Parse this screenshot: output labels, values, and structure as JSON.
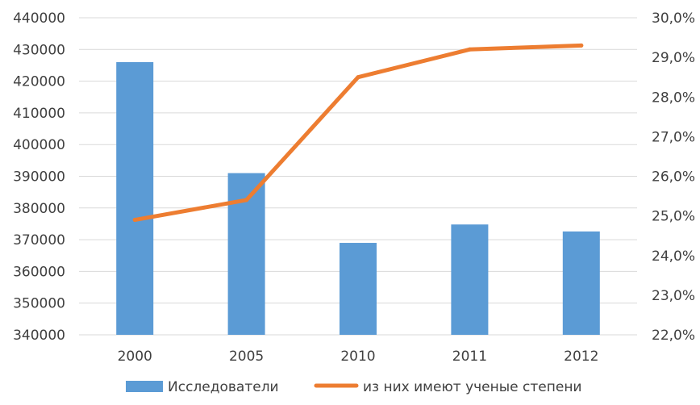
{
  "chart_data": {
    "type": "bar",
    "categories": [
      "2000",
      "2005",
      "2010",
      "2011",
      "2012"
    ],
    "series": [
      {
        "name": "Исследователи",
        "type": "bar",
        "axis": "left",
        "values": [
          426000,
          391000,
          369000,
          374800,
          372600
        ],
        "color": "#5B9BD5"
      },
      {
        "name": "из них имеют ученые степени",
        "type": "line",
        "axis": "right",
        "values": [
          24.9,
          25.4,
          28.5,
          29.2,
          29.3
        ],
        "color": "#ED7D31"
      }
    ],
    "y_left": {
      "ylim": [
        340000,
        440000
      ],
      "ticks": [
        "340000",
        "350000",
        "360000",
        "370000",
        "380000",
        "390000",
        "400000",
        "410000",
        "420000",
        "430000",
        "440000"
      ]
    },
    "y_right": {
      "ylim": [
        22,
        30
      ],
      "ticks": [
        "22,0%",
        "23,0%",
        "24,0%",
        "25,0%",
        "26,0%",
        "27,0%",
        "28,0%",
        "29,0%",
        "30,0%"
      ]
    },
    "grid": true,
    "legend_position": "bottom"
  }
}
